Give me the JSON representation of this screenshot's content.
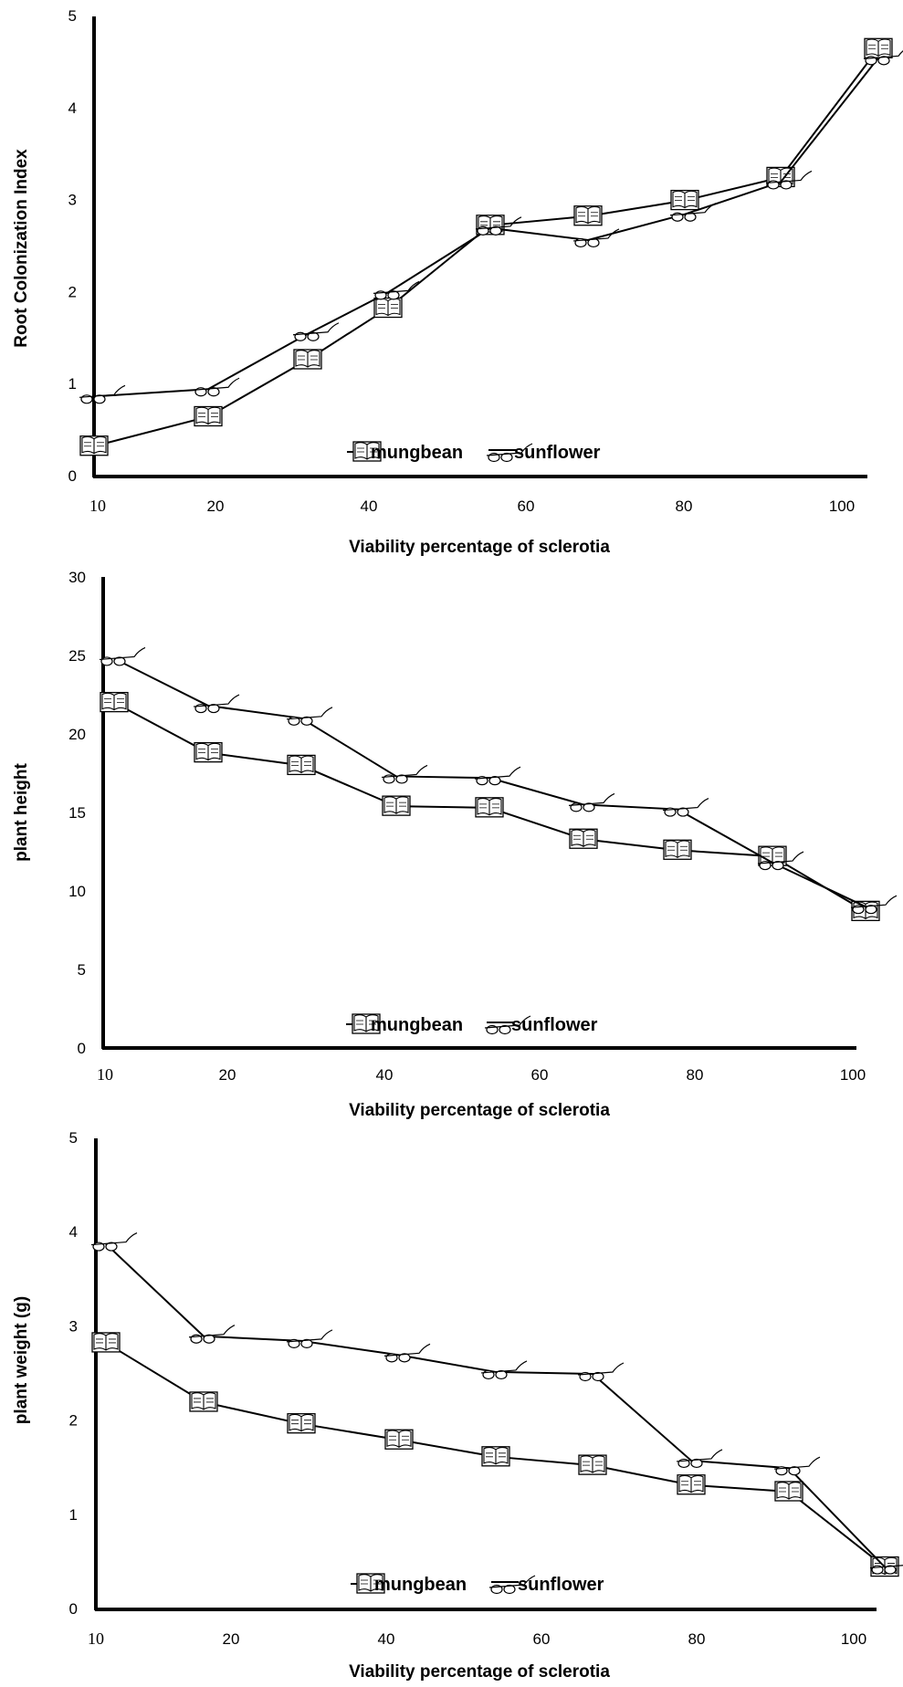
{
  "chart_data": [
    {
      "type": "line",
      "title": "",
      "xlabel": "Viability percentage of sclerotia",
      "ylabel": "Root Colonization Index",
      "x_tick_labels": [
        "10",
        "20",
        "40",
        "60",
        "80",
        "100"
      ],
      "ylim": [
        0,
        5
      ],
      "yticks": [
        "0",
        "1",
        "2",
        "3",
        "4",
        "5"
      ],
      "grid": false,
      "legend": "bottom-center",
      "series": [
        {
          "name": "mungbean",
          "marker": "book",
          "values": [
            0.33,
            0.65,
            1.27,
            1.83,
            2.73,
            2.83,
            3.0,
            3.25,
            4.65
          ]
        },
        {
          "name": "sunflower",
          "marker": "glasses",
          "values": [
            0.87,
            0.95,
            1.55,
            2.0,
            2.7,
            2.57,
            2.85,
            3.2,
            4.55
          ]
        }
      ]
    },
    {
      "type": "line",
      "title": "",
      "xlabel": "Viability percentage of sclerotia",
      "ylabel": "plant height",
      "x_tick_labels": [
        "10",
        "20",
        "40",
        "60",
        "80",
        "100"
      ],
      "ylim": [
        0,
        30
      ],
      "yticks": [
        "0",
        "5",
        "10",
        "15",
        "20",
        "25",
        "30"
      ],
      "grid": false,
      "legend": "bottom-center",
      "series": [
        {
          "name": "mungbean",
          "marker": "book",
          "values": [
            22.0,
            18.8,
            18.0,
            15.4,
            15.3,
            13.3,
            12.6,
            12.2,
            8.7
          ]
        },
        {
          "name": "sunflower",
          "marker": "glasses",
          "values": [
            24.8,
            21.8,
            21.0,
            17.3,
            17.2,
            15.5,
            15.2,
            11.8,
            9.0
          ]
        }
      ]
    },
    {
      "type": "line",
      "title": "",
      "xlabel": "Viability percentage of sclerotia",
      "ylabel": "plant weight (g)",
      "x_tick_labels": [
        "10",
        "20",
        "40",
        "60",
        "80",
        "100"
      ],
      "ylim": [
        0,
        5
      ],
      "yticks": [
        "0",
        "1",
        "2",
        "3",
        "4",
        "5"
      ],
      "grid": false,
      "legend": "bottom-center",
      "series": [
        {
          "name": "mungbean",
          "marker": "book",
          "values": [
            2.83,
            2.2,
            1.97,
            1.8,
            1.62,
            1.53,
            1.32,
            1.25,
            0.45
          ]
        },
        {
          "name": "sunflower",
          "marker": "glasses",
          "values": [
            3.88,
            2.9,
            2.85,
            2.7,
            2.52,
            2.5,
            1.58,
            1.5,
            0.45
          ]
        }
      ]
    }
  ]
}
